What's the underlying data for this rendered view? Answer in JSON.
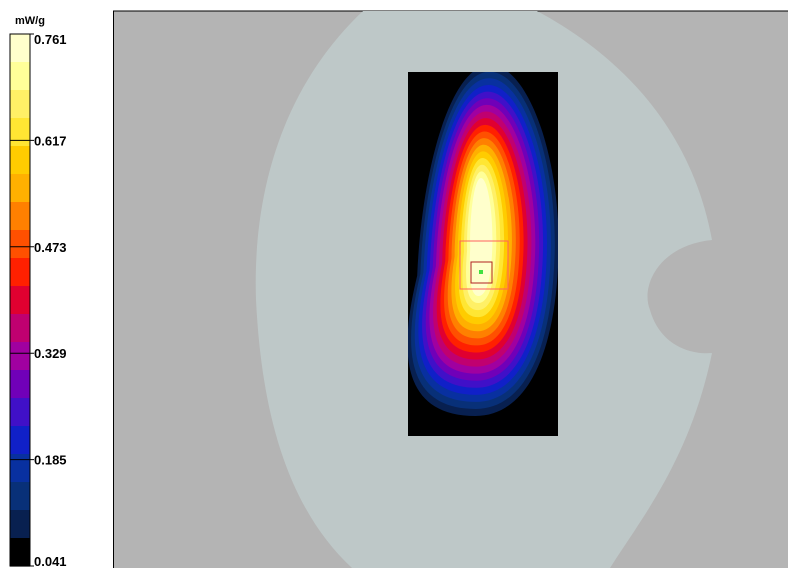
{
  "chart_data": {
    "type": "heatmap",
    "title": "",
    "unit": "mW/g",
    "colorbar": {
      "min": 0.041,
      "max": 0.761,
      "ticks": [
        {
          "value": 0.761,
          "label": "0.761"
        },
        {
          "value": 0.617,
          "label": "0.617"
        },
        {
          "value": 0.473,
          "label": "0.473"
        },
        {
          "value": 0.329,
          "label": "0.329"
        },
        {
          "value": 0.185,
          "label": "0.185"
        },
        {
          "value": 0.041,
          "label": "0.041"
        }
      ],
      "levels": [
        "#FFFFCC",
        "#FFFF99",
        "#FFF066",
        "#FFE633",
        "#FFCC00",
        "#FFB000",
        "#FF8000",
        "#FF5000",
        "#FF2000",
        "#E00030",
        "#C00070",
        "#A000A0",
        "#7000B8",
        "#4010C8",
        "#1020C8",
        "#0830A0",
        "#083078",
        "#082050",
        "#000000"
      ]
    },
    "peak_value": 0.761,
    "colors": {
      "background": "#B4B4B4",
      "phantom": "#BEC8C8",
      "scan_area_background": "#000000",
      "peak_marker": "#40E040",
      "zoom_box": "#FF6060"
    }
  }
}
